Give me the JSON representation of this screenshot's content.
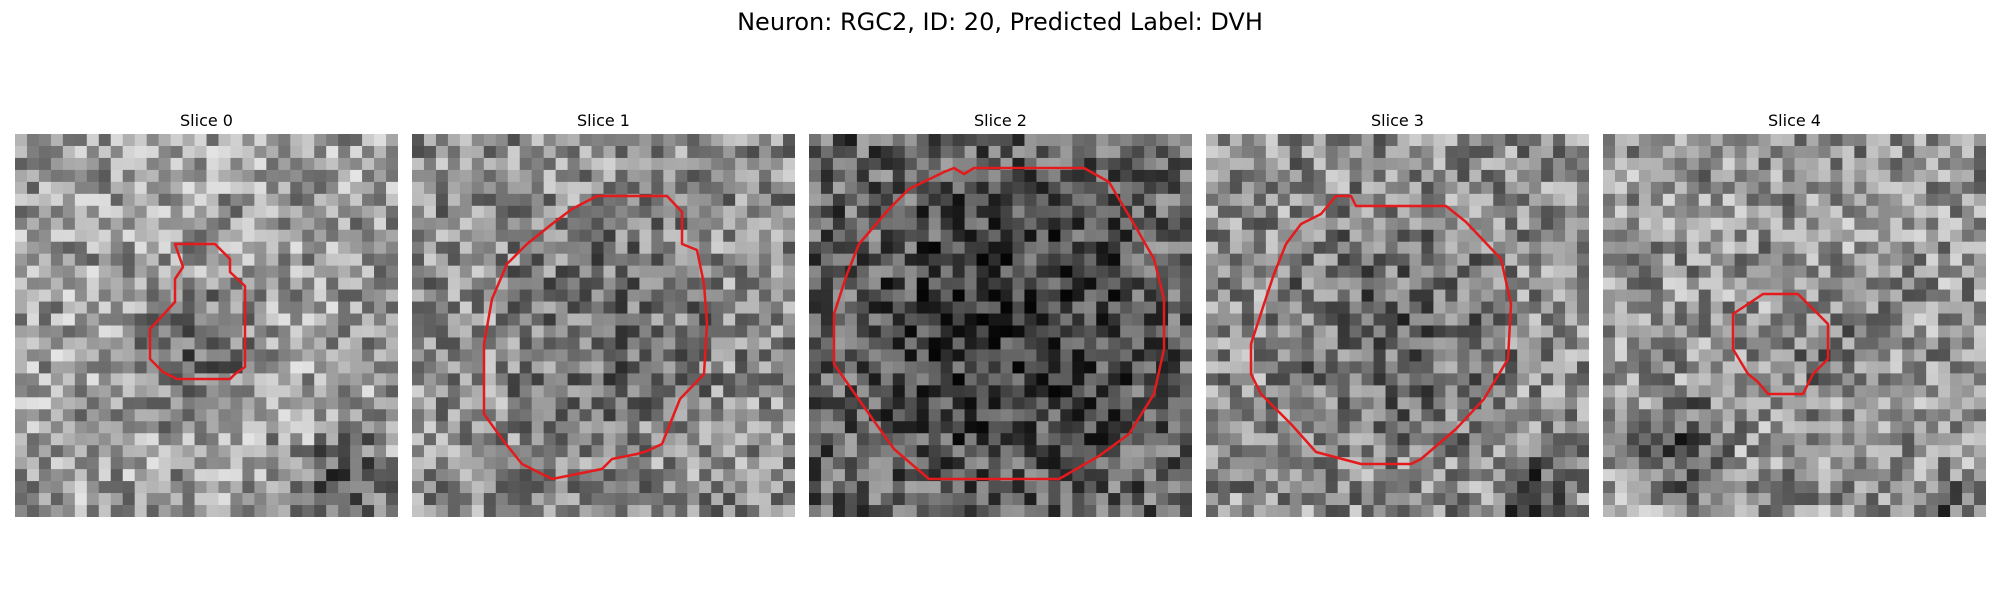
{
  "figure": {
    "title": "Neuron: RGC2, ID: 20, Predicted Label: DVH"
  },
  "slices": [
    {
      "title": "Slice 0",
      "seed": 11,
      "base": 0.62,
      "contour_color": "#e41a1c"
    },
    {
      "title": "Slice 1",
      "seed": 23,
      "base": 0.55,
      "contour_color": "#e41a1c"
    },
    {
      "title": "Slice 2",
      "seed": 37,
      "base": 0.38,
      "contour_color": "#e41a1c"
    },
    {
      "title": "Slice 3",
      "seed": 41,
      "base": 0.55,
      "contour_color": "#e41a1c"
    },
    {
      "title": "Slice 4",
      "seed": 53,
      "base": 0.58,
      "contour_color": "#e41a1c"
    }
  ],
  "colors": {
    "contour": "#e41a1c",
    "background": "#ffffff"
  }
}
